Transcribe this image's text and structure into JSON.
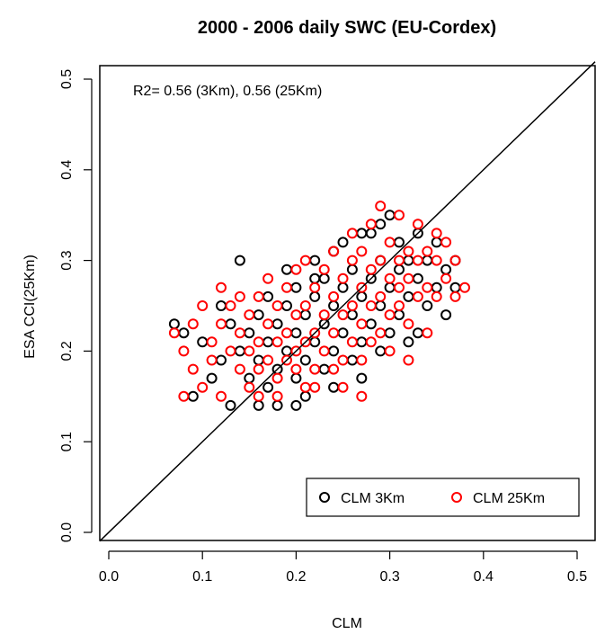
{
  "chart_data": {
    "type": "scatter",
    "title": "2000 - 2006 daily SWC (EU-Cordex)",
    "xlabel": "CLM",
    "ylabel": "ESA CCI(25Km)",
    "xlim": [
      0,
      0.5
    ],
    "ylim": [
      0,
      0.5
    ],
    "xticks": [
      "0.0",
      "0.1",
      "0.2",
      "0.3",
      "0.4",
      "0.5"
    ],
    "yticks": [
      "0.0",
      "0.1",
      "0.2",
      "0.3",
      "0.4",
      "0.5"
    ],
    "annotation": "R2= 0.56 (3Km), 0.56 (25Km)",
    "reference_line": "y = x",
    "legend_placement": "bottom-right",
    "series": [
      {
        "name": "CLM 3Km",
        "color": "#000000",
        "marker": "open-circle",
        "points": [
          [
            0.07,
            0.23
          ],
          [
            0.08,
            0.22
          ],
          [
            0.09,
            0.15
          ],
          [
            0.1,
            0.21
          ],
          [
            0.11,
            0.17
          ],
          [
            0.12,
            0.25
          ],
          [
            0.12,
            0.19
          ],
          [
            0.13,
            0.14
          ],
          [
            0.13,
            0.23
          ],
          [
            0.14,
            0.3
          ],
          [
            0.14,
            0.2
          ],
          [
            0.15,
            0.17
          ],
          [
            0.15,
            0.22
          ],
          [
            0.16,
            0.19
          ],
          [
            0.16,
            0.24
          ],
          [
            0.17,
            0.16
          ],
          [
            0.17,
            0.21
          ],
          [
            0.17,
            0.26
          ],
          [
            0.18,
            0.18
          ],
          [
            0.18,
            0.23
          ],
          [
            0.18,
            0.14
          ],
          [
            0.19,
            0.2
          ],
          [
            0.19,
            0.25
          ],
          [
            0.19,
            0.29
          ],
          [
            0.2,
            0.17
          ],
          [
            0.2,
            0.22
          ],
          [
            0.2,
            0.27
          ],
          [
            0.21,
            0.19
          ],
          [
            0.21,
            0.24
          ],
          [
            0.21,
            0.15
          ],
          [
            0.22,
            0.21
          ],
          [
            0.22,
            0.26
          ],
          [
            0.22,
            0.3
          ],
          [
            0.23,
            0.18
          ],
          [
            0.23,
            0.23
          ],
          [
            0.23,
            0.28
          ],
          [
            0.24,
            0.2
          ],
          [
            0.24,
            0.25
          ],
          [
            0.24,
            0.16
          ],
          [
            0.25,
            0.22
          ],
          [
            0.25,
            0.27
          ],
          [
            0.25,
            0.32
          ],
          [
            0.26,
            0.19
          ],
          [
            0.26,
            0.24
          ],
          [
            0.26,
            0.29
          ],
          [
            0.27,
            0.21
          ],
          [
            0.27,
            0.26
          ],
          [
            0.27,
            0.17
          ],
          [
            0.28,
            0.23
          ],
          [
            0.28,
            0.28
          ],
          [
            0.28,
            0.33
          ],
          [
            0.29,
            0.2
          ],
          [
            0.29,
            0.25
          ],
          [
            0.29,
            0.3
          ],
          [
            0.3,
            0.22
          ],
          [
            0.3,
            0.27
          ],
          [
            0.3,
            0.35
          ],
          [
            0.31,
            0.24
          ],
          [
            0.31,
            0.29
          ],
          [
            0.31,
            0.32
          ],
          [
            0.32,
            0.26
          ],
          [
            0.32,
            0.3
          ],
          [
            0.32,
            0.21
          ],
          [
            0.33,
            0.28
          ],
          [
            0.33,
            0.33
          ],
          [
            0.34,
            0.25
          ],
          [
            0.34,
            0.3
          ],
          [
            0.35,
            0.27
          ],
          [
            0.35,
            0.32
          ],
          [
            0.36,
            0.29
          ],
          [
            0.36,
            0.24
          ],
          [
            0.37,
            0.27
          ],
          [
            0.37,
            0.3
          ],
          [
            0.33,
            0.22
          ],
          [
            0.29,
            0.34
          ],
          [
            0.27,
            0.33
          ],
          [
            0.24,
            0.31
          ],
          [
            0.22,
            0.28
          ],
          [
            0.2,
            0.14
          ],
          [
            0.16,
            0.14
          ]
        ]
      },
      {
        "name": "CLM 25Km",
        "color": "#ff0000",
        "marker": "open-circle",
        "points": [
          [
            0.07,
            0.22
          ],
          [
            0.08,
            0.2
          ],
          [
            0.08,
            0.15
          ],
          [
            0.09,
            0.23
          ],
          [
            0.09,
            0.18
          ],
          [
            0.1,
            0.25
          ],
          [
            0.1,
            0.16
          ],
          [
            0.11,
            0.21
          ],
          [
            0.11,
            0.19
          ],
          [
            0.12,
            0.27
          ],
          [
            0.12,
            0.23
          ],
          [
            0.12,
            0.15
          ],
          [
            0.13,
            0.2
          ],
          [
            0.13,
            0.25
          ],
          [
            0.14,
            0.18
          ],
          [
            0.14,
            0.22
          ],
          [
            0.14,
            0.26
          ],
          [
            0.15,
            0.16
          ],
          [
            0.15,
            0.2
          ],
          [
            0.15,
            0.24
          ],
          [
            0.16,
            0.18
          ],
          [
            0.16,
            0.21
          ],
          [
            0.16,
            0.26
          ],
          [
            0.16,
            0.15
          ],
          [
            0.17,
            0.19
          ],
          [
            0.17,
            0.23
          ],
          [
            0.17,
            0.28
          ],
          [
            0.18,
            0.17
          ],
          [
            0.18,
            0.21
          ],
          [
            0.18,
            0.25
          ],
          [
            0.18,
            0.15
          ],
          [
            0.19,
            0.19
          ],
          [
            0.19,
            0.22
          ],
          [
            0.19,
            0.27
          ],
          [
            0.2,
            0.18
          ],
          [
            0.2,
            0.2
          ],
          [
            0.2,
            0.24
          ],
          [
            0.2,
            0.29
          ],
          [
            0.21,
            0.16
          ],
          [
            0.21,
            0.21
          ],
          [
            0.21,
            0.25
          ],
          [
            0.21,
            0.3
          ],
          [
            0.22,
            0.18
          ],
          [
            0.22,
            0.22
          ],
          [
            0.22,
            0.27
          ],
          [
            0.22,
            0.16
          ],
          [
            0.23,
            0.2
          ],
          [
            0.23,
            0.24
          ],
          [
            0.23,
            0.29
          ],
          [
            0.24,
            0.18
          ],
          [
            0.24,
            0.22
          ],
          [
            0.24,
            0.26
          ],
          [
            0.24,
            0.31
          ],
          [
            0.25,
            0.19
          ],
          [
            0.25,
            0.24
          ],
          [
            0.25,
            0.28
          ],
          [
            0.25,
            0.16
          ],
          [
            0.26,
            0.21
          ],
          [
            0.26,
            0.25
          ],
          [
            0.26,
            0.3
          ],
          [
            0.26,
            0.33
          ],
          [
            0.27,
            0.19
          ],
          [
            0.27,
            0.23
          ],
          [
            0.27,
            0.27
          ],
          [
            0.27,
            0.31
          ],
          [
            0.27,
            0.15
          ],
          [
            0.28,
            0.21
          ],
          [
            0.28,
            0.25
          ],
          [
            0.28,
            0.29
          ],
          [
            0.28,
            0.34
          ],
          [
            0.29,
            0.22
          ],
          [
            0.29,
            0.26
          ],
          [
            0.29,
            0.3
          ],
          [
            0.29,
            0.36
          ],
          [
            0.3,
            0.2
          ],
          [
            0.3,
            0.24
          ],
          [
            0.3,
            0.28
          ],
          [
            0.3,
            0.32
          ],
          [
            0.31,
            0.25
          ],
          [
            0.31,
            0.27
          ],
          [
            0.31,
            0.3
          ],
          [
            0.31,
            0.35
          ],
          [
            0.32,
            0.23
          ],
          [
            0.32,
            0.28
          ],
          [
            0.32,
            0.31
          ],
          [
            0.32,
            0.19
          ],
          [
            0.33,
            0.26
          ],
          [
            0.33,
            0.3
          ],
          [
            0.33,
            0.34
          ],
          [
            0.34,
            0.27
          ],
          [
            0.34,
            0.31
          ],
          [
            0.35,
            0.26
          ],
          [
            0.35,
            0.3
          ],
          [
            0.35,
            0.33
          ],
          [
            0.36,
            0.28
          ],
          [
            0.36,
            0.32
          ],
          [
            0.37,
            0.3
          ],
          [
            0.37,
            0.26
          ],
          [
            0.38,
            0.27
          ],
          [
            0.34,
            0.22
          ]
        ]
      }
    ]
  }
}
